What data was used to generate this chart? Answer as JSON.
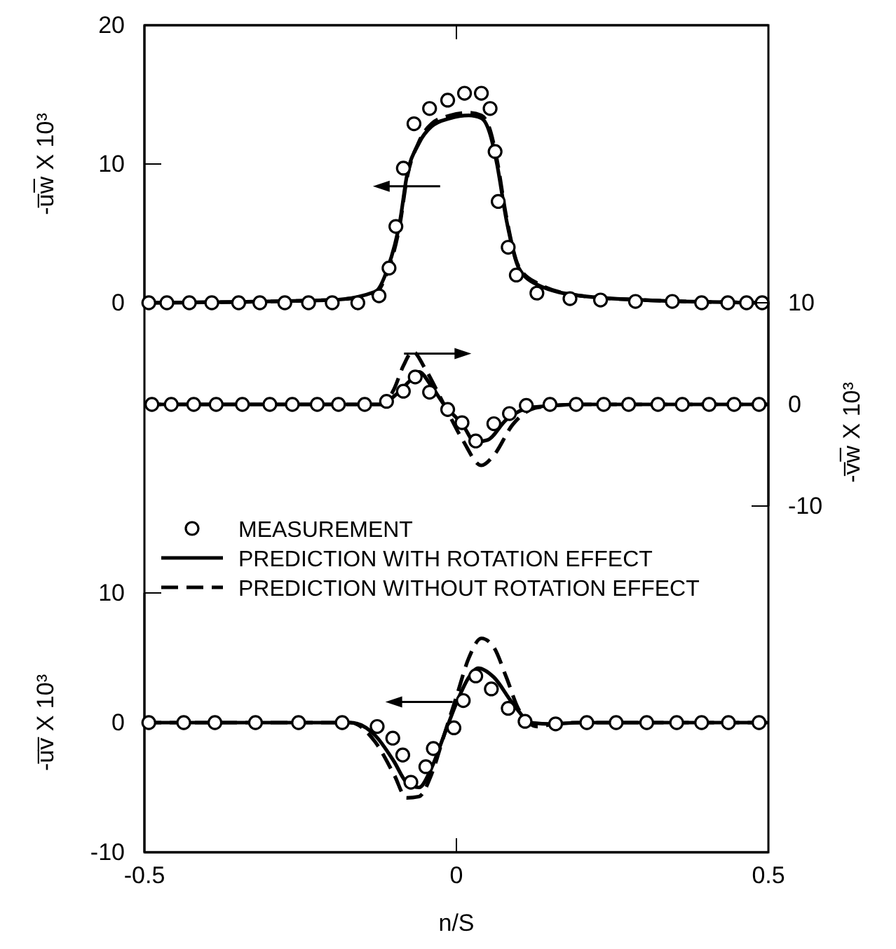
{
  "chart_data": [
    {
      "type": "line",
      "ylabel": "-u̅w̅ X 10³",
      "xlim": [
        -0.5,
        0.5
      ],
      "xticks": [
        {
          "value": -0.5,
          "label": null
        },
        {
          "value": 0,
          "label": null
        },
        {
          "value": 0.5,
          "label": null
        }
      ],
      "ylim": [
        0,
        20
      ],
      "yticks": [
        0,
        10,
        20
      ],
      "tick_labels": "y",
      "grid": false,
      "series": [
        {
          "type": "scatter",
          "marker": "circle",
          "color": "#000000",
          "x": [
            -0.493,
            -0.464,
            -0.428,
            -0.392,
            -0.349,
            -0.315,
            -0.275,
            -0.237,
            -0.199,
            -0.158,
            -0.124,
            -0.108,
            -0.097,
            -0.085,
            -0.068,
            -0.043,
            -0.014,
            0.013,
            0.04,
            0.054,
            0.062,
            0.067,
            0.083,
            0.096,
            0.129,
            0.182,
            0.231,
            0.287,
            0.346,
            0.393,
            0.435,
            0.465,
            0.49
          ],
          "values": [
            0,
            0,
            0,
            0,
            0,
            0,
            0,
            0,
            0,
            0,
            0.5,
            2.5,
            5.5,
            9.7,
            12.9,
            14,
            14.6,
            15.1,
            15.1,
            14,
            10.9,
            7.3,
            4,
            2,
            0.7,
            0.3,
            0.2,
            0.1,
            0.1,
            0,
            0,
            0,
            0
          ]
        },
        {
          "type": "line",
          "line_style": "solid",
          "color": "#000000",
          "x": [
            -0.5,
            -0.2,
            -0.13,
            -0.11,
            -0.09,
            -0.08,
            -0.06,
            -0.04,
            -0.01,
            0.02,
            0.04,
            0.055,
            0.065,
            0.08,
            0.1,
            0.13,
            0.2,
            0.3,
            0.5
          ],
          "values": [
            0,
            0.2,
            0.8,
            2.5,
            6,
            9,
            11.5,
            12.7,
            13.3,
            13.5,
            13.3,
            12,
            10,
            6,
            2.5,
            1.3,
            0.5,
            0.2,
            0
          ]
        },
        {
          "type": "line",
          "line_style": "dashed",
          "color": "#000000",
          "x": [
            -0.5,
            -0.2,
            -0.13,
            -0.11,
            -0.09,
            -0.08,
            -0.06,
            -0.04,
            -0.01,
            0.02,
            0.04,
            0.055,
            0.065,
            0.08,
            0.1,
            0.13,
            0.2,
            0.3,
            0.5
          ],
          "values": [
            0,
            0.2,
            0.7,
            2.3,
            5.8,
            8.8,
            11.6,
            12.9,
            13.5,
            13.7,
            13.5,
            12.3,
            10.3,
            6.2,
            2.6,
            1.4,
            0.5,
            0.2,
            0
          ]
        }
      ]
    },
    {
      "type": "line",
      "y2label": "-v̅w̅ X 10³",
      "xlim": [
        -0.5,
        0.5
      ],
      "y2lim": [
        -10,
        10
      ],
      "y2ticks": [
        {
          "value": 10,
          "label": "10"
        },
        0,
        -10
      ],
      "tick_labels": "y",
      "grid": false,
      "series": [
        {
          "type": "scatter",
          "marker": "circle",
          "axis": "y2",
          "color": "#000000",
          "x": [
            -0.488,
            -0.457,
            -0.421,
            -0.385,
            -0.343,
            -0.299,
            -0.263,
            -0.223,
            -0.189,
            -0.147,
            -0.112,
            -0.085,
            -0.066,
            -0.043,
            -0.014,
            0.009,
            0.031,
            0.06,
            0.085,
            0.112,
            0.15,
            0.192,
            0.236,
            0.276,
            0.323,
            0.362,
            0.405,
            0.445,
            0.485
          ],
          "values": [
            0,
            0,
            0,
            0,
            0,
            0,
            0,
            0,
            0,
            0,
            0.3,
            1.3,
            2.7,
            1.2,
            -0.5,
            -1.8,
            -3.6,
            -1.9,
            -0.9,
            -0.1,
            0,
            0,
            0,
            0,
            0,
            0,
            0,
            0,
            0
          ]
        },
        {
          "type": "line",
          "line_style": "solid",
          "axis": "y2",
          "color": "#000000",
          "x": [
            -0.5,
            -0.12,
            -0.1,
            -0.075,
            -0.06,
            -0.04,
            -0.02,
            0.01,
            0.03,
            0.05,
            0.08,
            0.12,
            0.2,
            0.5
          ],
          "values": [
            0,
            0,
            0.8,
            2.3,
            3.2,
            1.8,
            0,
            -2,
            -3.7,
            -3.5,
            -1.5,
            -0.3,
            0,
            0
          ]
        },
        {
          "type": "line",
          "line_style": "dashed",
          "axis": "y2",
          "color": "#000000",
          "x": [
            -0.5,
            -0.12,
            -0.1,
            -0.085,
            -0.07,
            -0.05,
            -0.02,
            0.01,
            0.04,
            0.06,
            0.09,
            0.13,
            0.2,
            0.5
          ],
          "values": [
            0,
            0,
            1.5,
            3.8,
            5.2,
            3.5,
            0,
            -3.5,
            -6,
            -5,
            -2,
            -0.3,
            0,
            0
          ]
        }
      ]
    },
    {
      "type": "line",
      "ylabel": "-u̅v̅ X 10³",
      "xlabel": "n/S",
      "xlim": [
        -0.5,
        0.5
      ],
      "xticks": [
        -0.5,
        0,
        0.5
      ],
      "ylim": [
        -10,
        10
      ],
      "yticks": [
        10,
        0,
        -10
      ],
      "grid": false,
      "legend": "top",
      "series": [
        {
          "type": "scatter",
          "name": "MEASUREMENT",
          "marker": "circle",
          "color": "#000000",
          "x": [
            -0.493,
            -0.437,
            -0.387,
            -0.322,
            -0.253,
            -0.183,
            -0.127,
            -0.102,
            -0.086,
            -0.073,
            -0.049,
            -0.037,
            -0.004,
            0.011,
            0.031,
            0.056,
            0.083,
            0.11,
            0.159,
            0.209,
            0.256,
            0.305,
            0.353,
            0.393,
            0.436,
            0.485
          ],
          "values": [
            0,
            0,
            0,
            0,
            0,
            0,
            -0.3,
            -1.2,
            -2.5,
            -4.6,
            -3.4,
            -2,
            -0.4,
            1.7,
            3.6,
            2.6,
            1.1,
            0.1,
            -0.1,
            0,
            0,
            0,
            0,
            0,
            0,
            0
          ]
        },
        {
          "type": "line",
          "name": "PREDICTION WITH ROTATION EFFECT",
          "line_style": "solid",
          "color": "#000000",
          "x": [
            -0.5,
            -0.17,
            -0.13,
            -0.1,
            -0.08,
            -0.06,
            -0.04,
            -0.02,
            0,
            0.02,
            0.035,
            0.06,
            0.09,
            0.12,
            0.15,
            0.2,
            0.5
          ],
          "values": [
            0,
            0,
            -1,
            -3,
            -4.6,
            -5,
            -3.5,
            -1,
            1.5,
            3.5,
            4.2,
            3.5,
            1.5,
            0,
            -0.1,
            0,
            0
          ]
        },
        {
          "type": "line",
          "name": "PREDICTION WITHOUT ROTATION EFFECT",
          "line_style": "dashed",
          "color": "#000000",
          "x": [
            -0.5,
            -0.17,
            -0.13,
            -0.1,
            -0.08,
            -0.06,
            -0.04,
            -0.02,
            0,
            0.02,
            0.04,
            0.06,
            0.08,
            0.1,
            0.13,
            0.17,
            0.5
          ],
          "values": [
            0,
            0,
            -1.5,
            -4,
            -5.8,
            -5.7,
            -4,
            -1,
            2,
            5,
            6.5,
            5.8,
            3.5,
            1,
            -0.3,
            0,
            0
          ]
        }
      ]
    }
  ]
}
